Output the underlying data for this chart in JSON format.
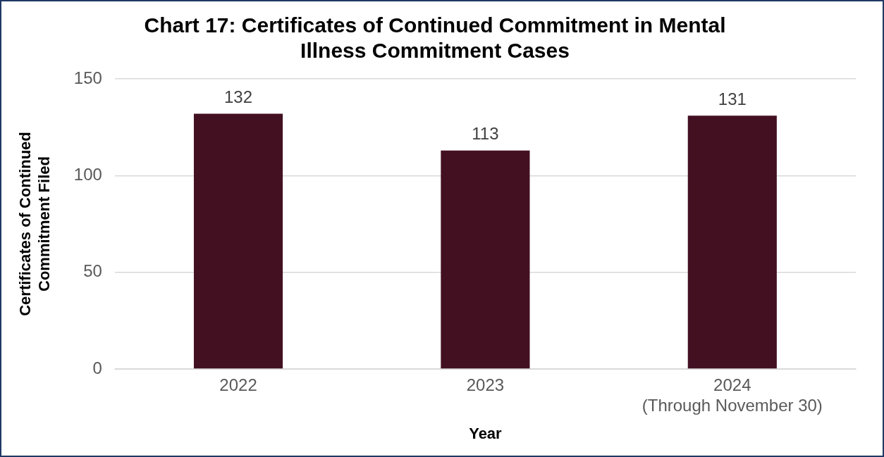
{
  "chart_data": {
    "type": "bar",
    "title": "Chart 17: Certificates of Continued Commitment in Mental Illness Commitment Cases",
    "xlabel": "Year",
    "ylabel": "Certificates of Continued Commitment Filed",
    "categories": [
      "2022",
      "2023",
      "2024\n(Through November 30)"
    ],
    "values": [
      132,
      113,
      131
    ],
    "color": "#431022",
    "ylim": [
      0,
      150
    ],
    "yticks": [
      0,
      50,
      100,
      150
    ],
    "grid": "y",
    "data_labels": true,
    "legend": false
  }
}
